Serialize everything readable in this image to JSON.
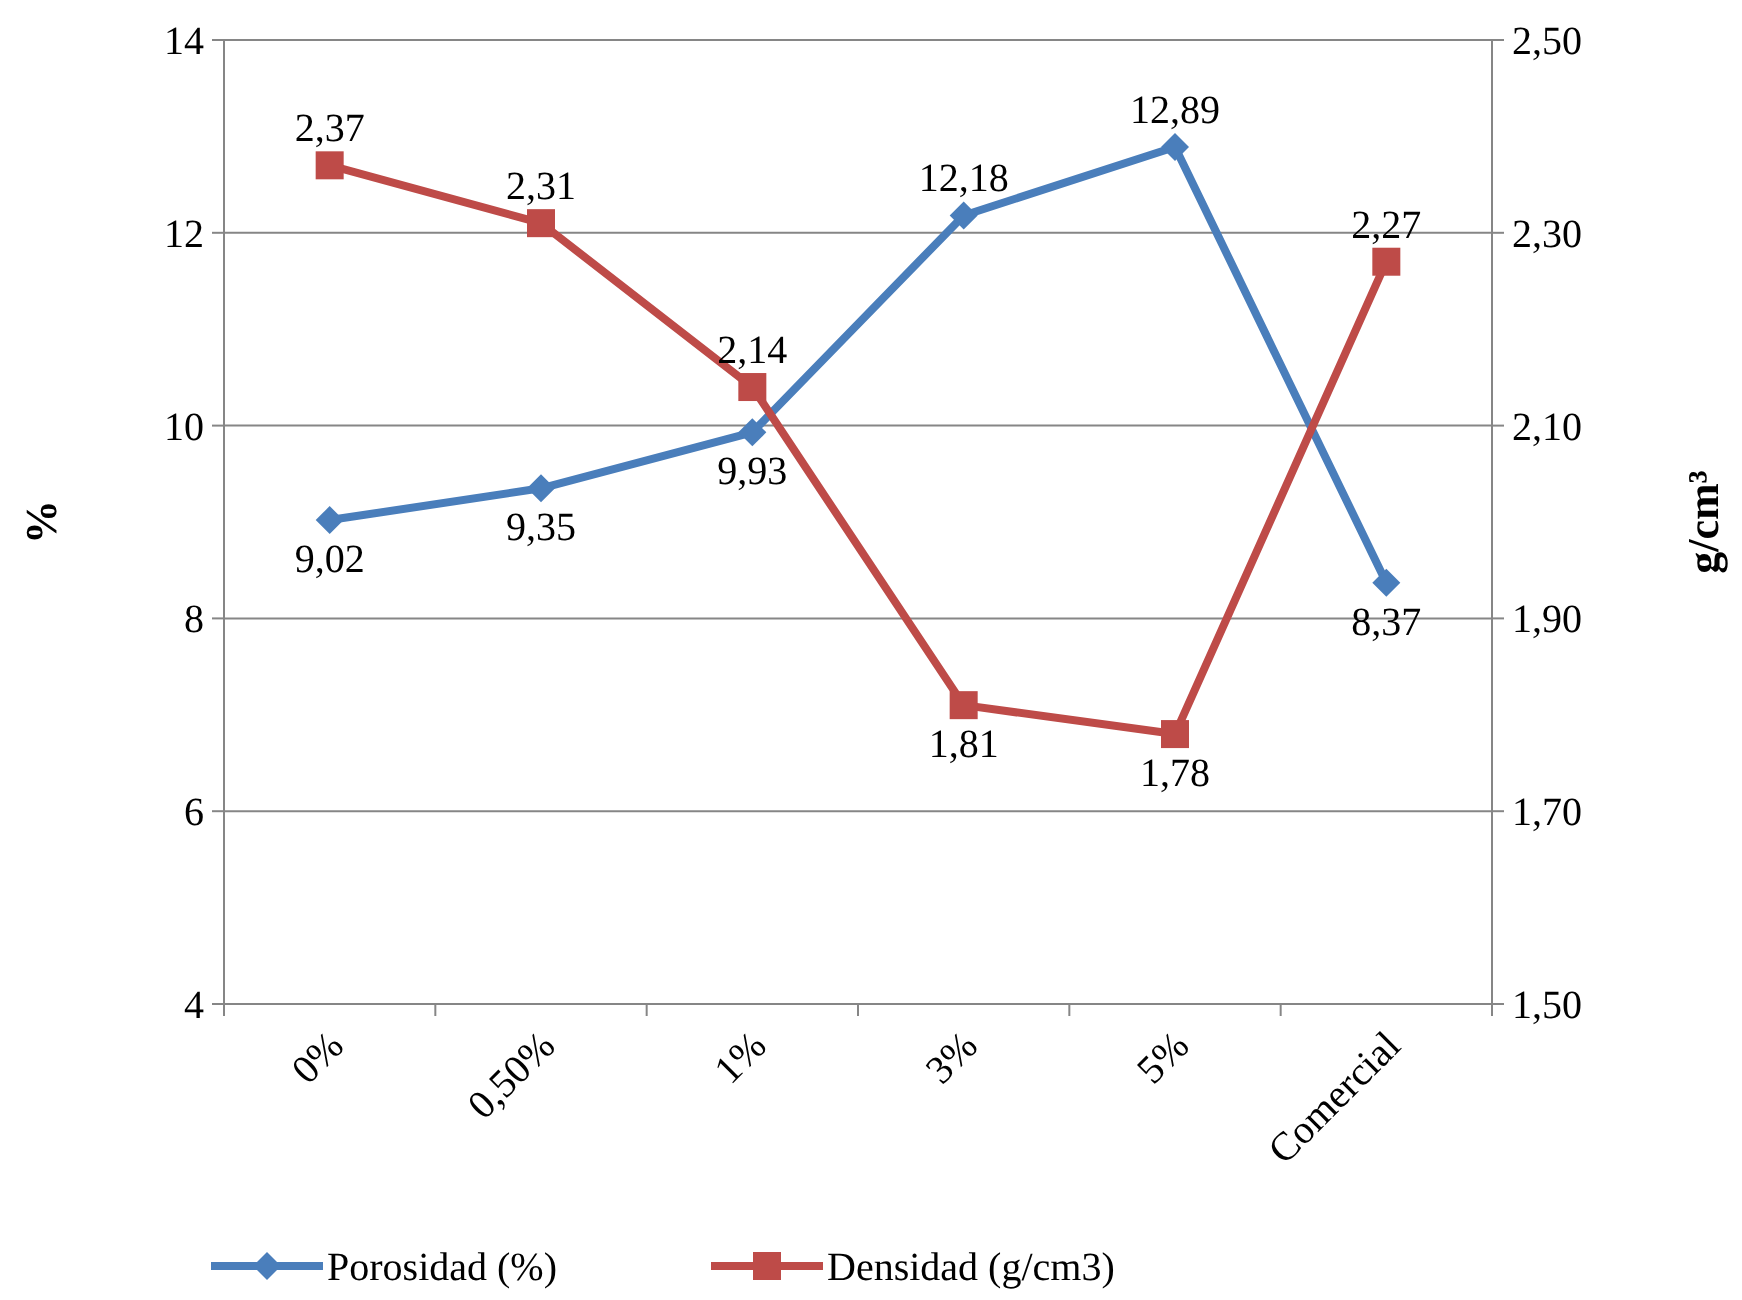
{
  "chart_data": {
    "type": "line",
    "categories": [
      "0%",
      "0,50%",
      "1%",
      "3%",
      "5%",
      "Comercial"
    ],
    "ylabel": "%",
    "y2label": "g/cm³",
    "ylim": [
      4,
      14
    ],
    "yticks": [
      4,
      6,
      8,
      10,
      12,
      14
    ],
    "y2lim": [
      1.5,
      2.5
    ],
    "y2ticks": [
      {
        "value": 1.5,
        "label": "1,50"
      },
      {
        "value": 1.7,
        "label": "1,70"
      },
      {
        "value": 1.9,
        "label": "1,90"
      },
      {
        "value": 2.1,
        "label": "2,10"
      },
      {
        "value": 2.3,
        "label": "2,30"
      },
      {
        "value": 2.5,
        "label": "2,50"
      }
    ],
    "grid": "y",
    "legend": "bottom",
    "series": [
      {
        "name": "Porosidad (%)",
        "color": "#4a7ebb",
        "marker": "diamond",
        "values": [
          9.02,
          9.35,
          9.93,
          12.18,
          12.89,
          8.37
        ],
        "value_labels": [
          "9,02",
          "9,35",
          "9,93",
          "12,18",
          "12,89",
          "8,37"
        ]
      },
      {
        "name": "Densidad (g/cm3)",
        "color": "#be4b48",
        "marker": "square",
        "axis": "y2",
        "values": [
          2.37,
          2.31,
          2.14,
          1.81,
          1.78,
          2.27
        ],
        "value_labels": [
          "2,37",
          "2,31",
          "2,14",
          "1,81",
          "1,78",
          "2,27"
        ]
      }
    ]
  }
}
